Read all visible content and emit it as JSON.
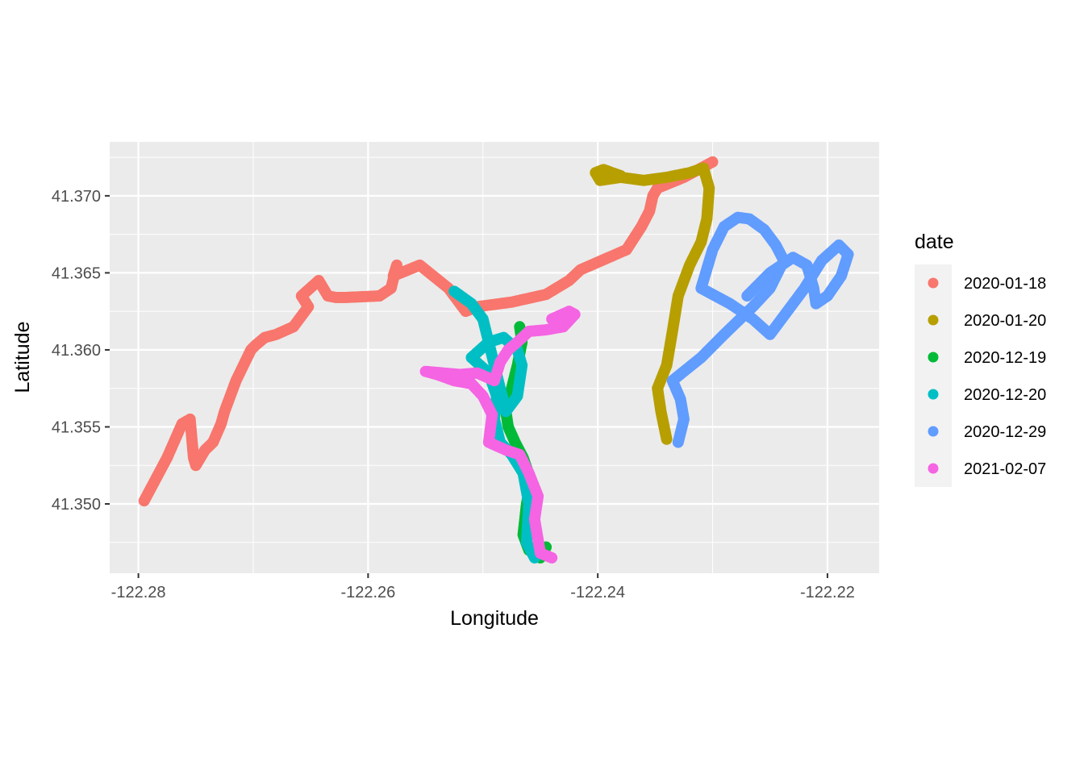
{
  "chart_data": {
    "type": "scatter",
    "xlabel": "Longitude",
    "ylabel": "Latitude",
    "xlim": [
      -122.2825,
      -122.2155
    ],
    "ylim": [
      41.3455,
      41.3735
    ],
    "x_ticks": [
      -122.28,
      -122.26,
      -122.24,
      -122.22
    ],
    "x_tick_labels": [
      "-122.28",
      "-122.26",
      "-122.24",
      "-122.22"
    ],
    "y_ticks": [
      41.35,
      41.355,
      41.36,
      41.365,
      41.37
    ],
    "y_tick_labels": [
      "41.350",
      "41.355",
      "41.360",
      "41.365",
      "41.370"
    ],
    "grid": true,
    "legend": {
      "title": "date",
      "position": "right"
    },
    "series": [
      {
        "name": "2020-01-18",
        "color": "#F8766D",
        "x": [
          -122.2795,
          -122.2775,
          -122.2762,
          -122.2755,
          -122.2752,
          -122.275,
          -122.2742,
          -122.2735,
          -122.2728,
          -122.2725,
          -122.2715,
          -122.2702,
          -122.2698,
          -122.269,
          -122.268,
          -122.2665,
          -122.2652,
          -122.2658,
          -122.2643,
          -122.2635,
          -122.2628,
          -122.262,
          -122.259,
          -122.258,
          -122.2575,
          -122.2578,
          -122.2555,
          -122.2545,
          -122.253,
          -122.2515,
          -122.2505,
          -122.2475,
          -122.2445,
          -122.2425,
          -122.2415,
          -122.2375,
          -122.2362,
          -122.2355,
          -122.2352,
          -122.2348,
          -122.2325,
          -122.23
        ],
        "y": [
          41.3502,
          41.353,
          41.3552,
          41.3555,
          41.353,
          41.3525,
          41.3535,
          41.354,
          41.3552,
          41.356,
          41.358,
          41.36,
          41.3603,
          41.3608,
          41.361,
          41.3615,
          41.3628,
          41.3635,
          41.3645,
          41.3635,
          41.3634,
          41.3634,
          41.3635,
          41.364,
          41.3655,
          41.3648,
          41.3655,
          41.3649,
          41.364,
          41.3625,
          41.3628,
          41.3631,
          41.3636,
          41.3645,
          41.3652,
          41.3665,
          41.368,
          41.369,
          41.37,
          41.3705,
          41.3712,
          41.3722
        ]
      },
      {
        "name": "2020-01-20",
        "color": "#B79F00",
        "x": [
          -122.234,
          -122.2345,
          -122.2348,
          -122.234,
          -122.2335,
          -122.233,
          -122.232,
          -122.231,
          -122.2305,
          -122.2303,
          -122.2308,
          -122.232,
          -122.234,
          -122.236,
          -122.238,
          -122.2398,
          -122.2402,
          -122.2395,
          -122.238
        ],
        "y": [
          41.3542,
          41.356,
          41.3575,
          41.359,
          41.3612,
          41.3635,
          41.3655,
          41.367,
          41.3685,
          41.3705,
          41.3718,
          41.3715,
          41.3712,
          41.371,
          41.3712,
          41.371,
          41.3715,
          41.3717,
          41.3713
        ]
      },
      {
        "name": "2020-12-19",
        "color": "#00BA38",
        "x": [
          -122.2445,
          -122.245,
          -122.246,
          -122.2465,
          -122.2462,
          -122.2458,
          -122.2465,
          -122.2472,
          -122.2478,
          -122.248,
          -122.2475,
          -122.247,
          -122.2466,
          -122.2468
        ],
        "y": [
          41.3472,
          41.3465,
          41.347,
          41.348,
          41.35,
          41.3515,
          41.353,
          41.354,
          41.355,
          41.356,
          41.3575,
          41.359,
          41.3605,
          41.3615
        ]
      },
      {
        "name": "2020-12-20",
        "color": "#00BFC4",
        "x": [
          -122.2455,
          -122.2462,
          -122.246,
          -122.2465,
          -122.2475,
          -122.2485,
          -122.249,
          -122.2488,
          -122.2495,
          -122.251,
          -122.2495,
          -122.2482,
          -122.247,
          -122.2466,
          -122.247,
          -122.248,
          -122.25,
          -122.251,
          -122.2525
        ],
        "y": [
          41.3465,
          41.3475,
          41.35,
          41.352,
          41.3532,
          41.354,
          41.3555,
          41.357,
          41.3585,
          41.3595,
          41.3605,
          41.3608,
          41.36,
          41.359,
          41.357,
          41.356,
          41.362,
          41.363,
          41.3638
        ]
      },
      {
        "name": "2020-12-29",
        "color": "#619CFF",
        "x": [
          -122.233,
          -122.2325,
          -122.2328,
          -122.2335,
          -122.231,
          -122.229,
          -122.2265,
          -122.225,
          -122.2238,
          -122.2245,
          -122.2255,
          -122.2268,
          -122.2278,
          -122.229,
          -122.23,
          -122.231,
          -122.2285,
          -122.2265,
          -122.225,
          -122.2235,
          -122.222,
          -122.2205,
          -122.219,
          -122.2182,
          -122.2188,
          -122.22,
          -122.221,
          -122.2212,
          -122.2218,
          -122.223,
          -122.225,
          -122.227
        ],
        "y": [
          41.354,
          41.3555,
          41.3568,
          41.358,
          41.3595,
          41.361,
          41.3628,
          41.364,
          41.3658,
          41.3668,
          41.3678,
          41.3685,
          41.3686,
          41.368,
          41.3665,
          41.364,
          41.363,
          41.362,
          41.361,
          41.3625,
          41.364,
          41.3658,
          41.3668,
          41.3662,
          41.3648,
          41.3635,
          41.363,
          41.364,
          41.3655,
          41.366,
          41.365,
          41.3635
        ]
      },
      {
        "name": "2021-02-07",
        "color": "#F564E3",
        "x": [
          -122.244,
          -122.245,
          -122.2455,
          -122.2452,
          -122.246,
          -122.2468,
          -122.248,
          -122.2495,
          -122.2492,
          -122.25,
          -122.251,
          -122.2525,
          -122.254,
          -122.255,
          -122.252,
          -122.2505,
          -122.249,
          -122.2485,
          -122.2478,
          -122.247,
          -122.246,
          -122.2445,
          -122.243,
          -122.242,
          -122.2425,
          -122.244
        ],
        "y": [
          41.3465,
          41.3468,
          41.349,
          41.3505,
          41.352,
          41.3532,
          41.3535,
          41.354,
          41.3558,
          41.357,
          41.3578,
          41.358,
          41.3584,
          41.3586,
          41.3584,
          41.3585,
          41.358,
          41.3592,
          41.36,
          41.3605,
          41.3612,
          41.3613,
          41.3615,
          41.3623,
          41.3625,
          41.362
        ]
      }
    ]
  }
}
